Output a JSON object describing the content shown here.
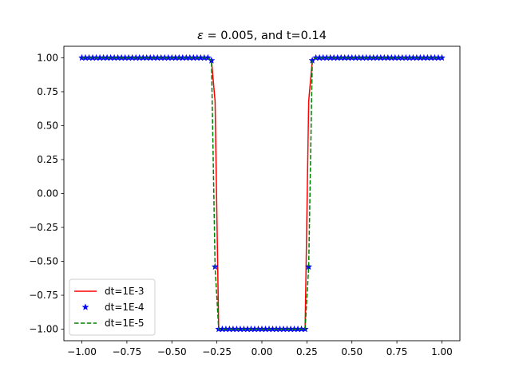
{
  "chart_data": {
    "type": "line",
    "title_italic": "ε",
    "title_rest": " = 0.005, and t=0.14",
    "xlabel": "",
    "ylabel": "",
    "xlim": [
      -1.1,
      1.1
    ],
    "ylim": [
      -1.085,
      1.085
    ],
    "x_ticks": [
      -1.0,
      -0.75,
      -0.5,
      -0.25,
      0.0,
      0.25,
      0.5,
      0.75,
      1.0
    ],
    "x_tick_labels": [
      "−1.00",
      "−0.75",
      "−0.50",
      "−0.25",
      "0.00",
      "0.25",
      "0.50",
      "0.75",
      "1.00"
    ],
    "y_ticks": [
      -1.0,
      -0.75,
      -0.5,
      -0.25,
      0.0,
      0.25,
      0.5,
      0.75,
      1.0
    ],
    "y_tick_labels": [
      "−1.00",
      "−0.75",
      "−0.50",
      "−0.25",
      "0.00",
      "0.25",
      "0.50",
      "0.75",
      "1.00"
    ],
    "grid": false,
    "legend_position": "lower-left",
    "series": [
      {
        "name": "dt=1E-3",
        "style": "solid-line",
        "color": "#ff0000",
        "x": [
          -1.0,
          -0.3,
          -0.28,
          -0.26,
          -0.24,
          0.0,
          0.24,
          0.26,
          0.28,
          0.3,
          1.0
        ],
        "y": [
          1.0,
          1.0,
          0.98,
          0.68,
          -1.0,
          -1.0,
          -1.0,
          0.68,
          0.98,
          1.0,
          1.0
        ]
      },
      {
        "name": "dt=1E-4",
        "style": "star-markers",
        "color": "#0000ff",
        "x": [
          -1.0,
          -0.98,
          -0.96,
          -0.94,
          -0.92,
          -0.9,
          -0.88,
          -0.86,
          -0.84,
          -0.82,
          -0.8,
          -0.78,
          -0.76,
          -0.74,
          -0.72,
          -0.7,
          -0.68,
          -0.66,
          -0.64,
          -0.62,
          -0.6,
          -0.58,
          -0.56,
          -0.54,
          -0.52,
          -0.5,
          -0.48,
          -0.46,
          -0.44,
          -0.42,
          -0.4,
          -0.38,
          -0.36,
          -0.34,
          -0.32,
          -0.3,
          -0.28,
          -0.26,
          -0.24,
          -0.22,
          -0.2,
          -0.18,
          -0.16,
          -0.14,
          -0.12,
          -0.1,
          -0.08,
          -0.06,
          -0.04,
          -0.02,
          0.0,
          0.02,
          0.04,
          0.06,
          0.08,
          0.1,
          0.12,
          0.14,
          0.16,
          0.18,
          0.2,
          0.22,
          0.24,
          0.26,
          0.28,
          0.3,
          0.32,
          0.34,
          0.36,
          0.38,
          0.4,
          0.42,
          0.44,
          0.46,
          0.48,
          0.5,
          0.52,
          0.54,
          0.56,
          0.58,
          0.6,
          0.62,
          0.64,
          0.66,
          0.68,
          0.7,
          0.72,
          0.74,
          0.76,
          0.78,
          0.8,
          0.82,
          0.84,
          0.86,
          0.88,
          0.9,
          0.92,
          0.94,
          0.96,
          0.98,
          1.0
        ],
        "y": [
          1.0,
          1.0,
          1.0,
          1.0,
          1.0,
          1.0,
          1.0,
          1.0,
          1.0,
          1.0,
          1.0,
          1.0,
          1.0,
          1.0,
          1.0,
          1.0,
          1.0,
          1.0,
          1.0,
          1.0,
          1.0,
          1.0,
          1.0,
          1.0,
          1.0,
          1.0,
          1.0,
          1.0,
          1.0,
          1.0,
          1.0,
          1.0,
          1.0,
          1.0,
          1.0,
          1.0,
          0.98,
          -0.54,
          -1.0,
          -1.0,
          -1.0,
          -1.0,
          -1.0,
          -1.0,
          -1.0,
          -1.0,
          -1.0,
          -1.0,
          -1.0,
          -1.0,
          -1.0,
          -1.0,
          -1.0,
          -1.0,
          -1.0,
          -1.0,
          -1.0,
          -1.0,
          -1.0,
          -1.0,
          -1.0,
          -1.0,
          -1.0,
          -0.54,
          0.98,
          1.0,
          1.0,
          1.0,
          1.0,
          1.0,
          1.0,
          1.0,
          1.0,
          1.0,
          1.0,
          1.0,
          1.0,
          1.0,
          1.0,
          1.0,
          1.0,
          1.0,
          1.0,
          1.0,
          1.0,
          1.0,
          1.0,
          1.0,
          1.0,
          1.0,
          1.0,
          1.0,
          1.0,
          1.0,
          1.0,
          1.0,
          1.0,
          1.0,
          1.0,
          1.0,
          1.0
        ]
      },
      {
        "name": "dt=1E-5",
        "style": "dashed-line",
        "color": "#008000",
        "x": [
          -1.0,
          -0.3,
          -0.28,
          -0.26,
          -0.24,
          0.0,
          0.24,
          0.26,
          0.28,
          0.3,
          1.0
        ],
        "y": [
          1.0,
          1.0,
          0.98,
          -0.54,
          -1.0,
          -1.0,
          -1.0,
          -0.54,
          0.98,
          1.0,
          1.0
        ]
      }
    ]
  }
}
